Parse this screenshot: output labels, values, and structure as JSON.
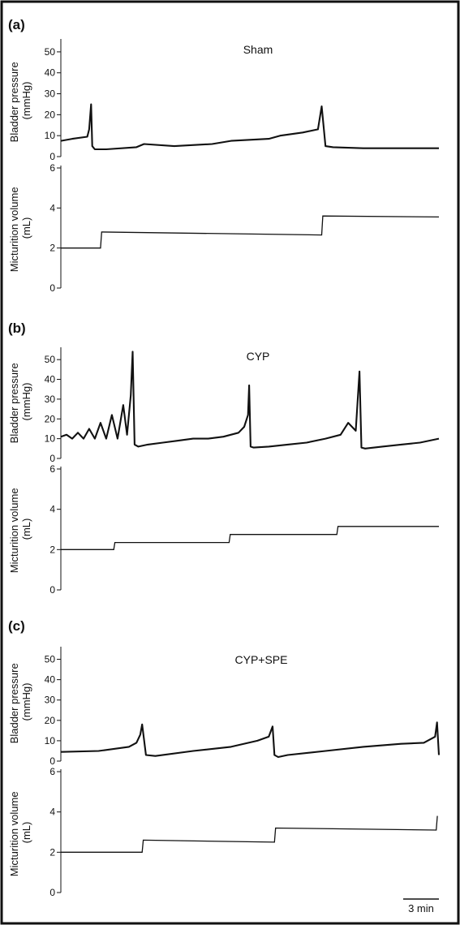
{
  "chart_data": [
    {
      "type": "line",
      "panel_label": "(a)",
      "title": "Sham",
      "pressure": {
        "ylabel": [
          "Bladder pressure",
          "(mmHg)"
        ],
        "ylim": [
          0,
          55
        ],
        "yticks": [
          0,
          10,
          20,
          30,
          40,
          50
        ],
        "tick_labels": [
          "0",
          "10",
          "20",
          "30",
          "40",
          "50"
        ],
        "x": [
          0,
          3,
          7,
          7.5,
          8,
          8.3,
          9,
          12,
          20,
          22,
          30,
          40,
          45,
          55,
          58,
          64,
          68,
          69,
          70,
          72,
          80,
          90,
          100
        ],
        "values": [
          7.5,
          8.5,
          9.5,
          13,
          25,
          5,
          3.5,
          3.5,
          4.5,
          6,
          5,
          6,
          7.5,
          8.5,
          10,
          11.5,
          13,
          24,
          5,
          4.5,
          4,
          4,
          4
        ]
      },
      "volume": {
        "ylabel": [
          "Micturition volume",
          "(mL)"
        ],
        "ylim": [
          0,
          6
        ],
        "yticks": [
          0,
          2,
          4,
          6
        ],
        "tick_labels": [
          "0",
          "2",
          "4",
          "6"
        ],
        "x": [
          0,
          10.5,
          10.8,
          69,
          69.3,
          100
        ],
        "values": [
          2.0,
          2.0,
          2.8,
          2.65,
          3.6,
          3.55
        ]
      }
    },
    {
      "type": "line",
      "panel_label": "(b)",
      "title": "CYP",
      "pressure": {
        "ylabel": [
          "Bladder pressure",
          "(mmHg)"
        ],
        "ylim": [
          0,
          55
        ],
        "yticks": [
          0,
          10,
          20,
          30,
          40,
          50
        ],
        "tick_labels": [
          "0",
          "10",
          "20",
          "30",
          "40",
          "50"
        ],
        "x": [
          0,
          1.5,
          3,
          4.5,
          6,
          7.5,
          9,
          10.5,
          12,
          13.5,
          15,
          16.5,
          17.5,
          18.5,
          19,
          19.5,
          20.5,
          23,
          27,
          31,
          35,
          39,
          43,
          47,
          48.5,
          49.5,
          49.8,
          50.2,
          51,
          55,
          60,
          65,
          70,
          74,
          76,
          78,
          79,
          79.5,
          80.5,
          85,
          90,
          95,
          100
        ],
        "values": [
          11,
          12,
          10,
          13,
          10,
          15,
          10,
          18,
          10,
          22,
          10,
          27,
          12,
          32,
          54,
          7,
          6,
          7,
          8,
          9,
          10,
          10,
          11,
          13,
          16,
          22,
          37,
          6,
          5.5,
          6,
          7,
          8,
          10,
          12,
          18,
          14,
          44,
          5.5,
          5,
          6,
          7,
          8,
          10
        ]
      },
      "volume": {
        "ylabel": [
          "Micturition volume",
          "(mL)"
        ],
        "ylim": [
          0,
          6
        ],
        "yticks": [
          0,
          2,
          4,
          6
        ],
        "tick_labels": [
          "0",
          "2",
          "4",
          "6"
        ],
        "x": [
          0,
          14,
          14.3,
          44.5,
          44.8,
          73,
          73.3,
          100
        ],
        "values": [
          2.0,
          2.0,
          2.35,
          2.35,
          2.75,
          2.75,
          3.15,
          3.15
        ]
      }
    },
    {
      "type": "line",
      "panel_label": "(c)",
      "title": "CYP+SPE",
      "pressure": {
        "ylabel": [
          "Bladder pressure",
          "(mmHg)"
        ],
        "ylim": [
          0,
          55
        ],
        "yticks": [
          0,
          10,
          20,
          30,
          40,
          50
        ],
        "tick_labels": [
          "0",
          "10",
          "20",
          "30",
          "40",
          "50"
        ],
        "x": [
          0,
          10,
          18,
          20,
          21,
          21.5,
          22.5,
          25,
          35,
          45,
          52,
          55,
          56,
          56.5,
          57.5,
          60,
          70,
          80,
          90,
          96,
          99,
          99.5,
          100
        ],
        "values": [
          4.5,
          5,
          7,
          9,
          13,
          18,
          3,
          2.5,
          5,
          7,
          10,
          12,
          17,
          3,
          2,
          3,
          5,
          7,
          8.5,
          9,
          12,
          19,
          3
        ]
      },
      "volume": {
        "ylabel": [
          "Micturition volume",
          "(mL)"
        ],
        "ylim": [
          0,
          6
        ],
        "yticks": [
          0,
          2,
          4,
          6
        ],
        "tick_labels": [
          "0",
          "2",
          "4",
          "6"
        ],
        "x": [
          0,
          21.5,
          21.8,
          56.5,
          56.8,
          99.3,
          99.6
        ],
        "values": [
          2.0,
          2.0,
          2.6,
          2.5,
          3.2,
          3.1,
          3.8
        ]
      }
    }
  ],
  "scale_bar": {
    "label": "3 min",
    "minutes": 3
  }
}
